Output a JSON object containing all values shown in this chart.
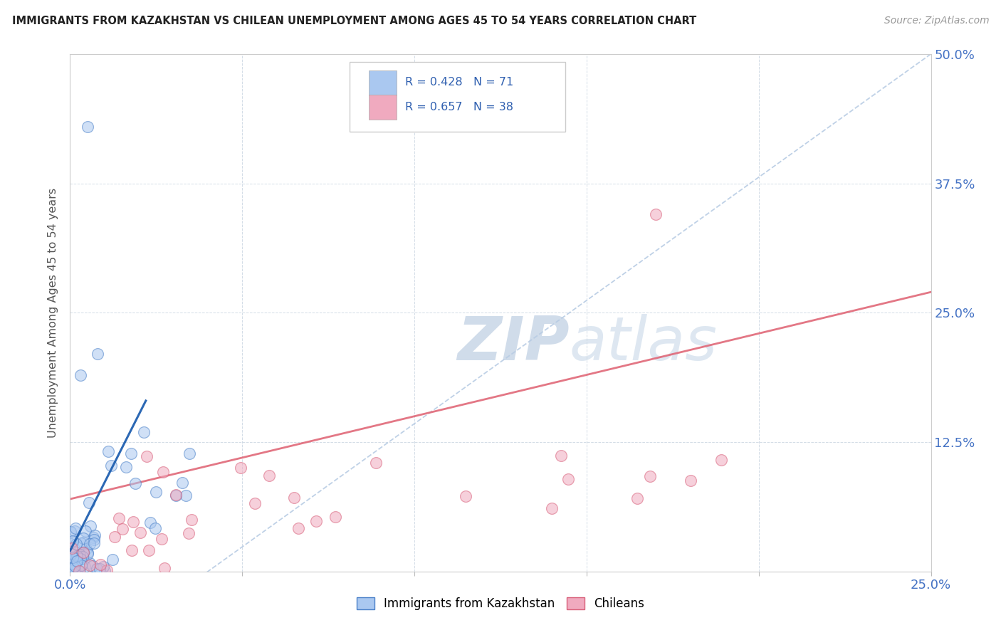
{
  "title": "IMMIGRANTS FROM KAZAKHSTAN VS CHILEAN UNEMPLOYMENT AMONG AGES 45 TO 54 YEARS CORRELATION CHART",
  "source": "Source: ZipAtlas.com",
  "ylabel": "Unemployment Among Ages 45 to 54 years",
  "xlim": [
    0,
    0.25
  ],
  "ylim": [
    0,
    0.5
  ],
  "xticklabels": [
    "0.0%",
    "",
    "",
    "",
    "",
    "25.0%"
  ],
  "yticklabels": [
    "",
    "12.5%",
    "25.0%",
    "37.5%",
    "50.0%"
  ],
  "color_kaz": "#aac8f0",
  "color_chile": "#f0aabf",
  "color_kaz_edge": "#4a80c8",
  "color_chile_edge": "#d8607a",
  "color_trend_kaz_dashed": "#b8cce4",
  "color_trend_kaz_solid": "#2060b0",
  "color_trend_chile": "#e06878",
  "watermark_color": "#d0dcea",
  "background_color": "#ffffff",
  "N_kaz": 71,
  "N_chile": 38,
  "kaz_seed": 10,
  "chile_seed": 20
}
